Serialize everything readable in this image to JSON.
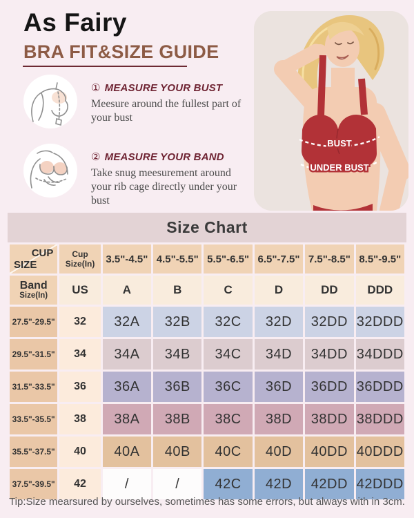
{
  "header": {
    "brand": "As Fairy",
    "subtitle": "BRA FIT&SIZE GUIDE"
  },
  "steps": [
    {
      "number": "①",
      "title": "MEASURE YOUR BUST",
      "description": "Meesure around the fullest part of your bust",
      "icon": "bust-measure-illustration"
    },
    {
      "number": "②",
      "title": "MEASURE YOUR BAND",
      "description": "Take snug meesurement around your rib cage directly under your bust",
      "icon": "band-measure-illustration"
    }
  ],
  "photo": {
    "bust_label": "BUST",
    "under_bust_label": "UNDER BUST"
  },
  "size_chart": {
    "title": "Size Chart",
    "corner": {
      "top": "CUP",
      "bottom": "SIZE"
    },
    "cup_header_label": "Cup Size(In)",
    "cup_ranges": [
      "3.5\"-4.5\"",
      "4.5\"-5.5\"",
      "5.5\"-6.5\"",
      "6.5\"-7.5\"",
      "7.5\"-8.5\"",
      "8.5\"-9.5\""
    ],
    "band_header": {
      "line1": "Band",
      "line2": "Size(In)"
    },
    "us_label": "US",
    "cup_letters": [
      "A",
      "B",
      "C",
      "D",
      "DD",
      "DDD"
    ],
    "empty_cell_color": "#fdfcfc",
    "rows": [
      {
        "band_range": "27.5\"-29.5\"",
        "us": "32",
        "color": "#ccd3e5",
        "sizes": [
          "32A",
          "32B",
          "32C",
          "32D",
          "32DD",
          "32DDD"
        ]
      },
      {
        "band_range": "29.5\"-31.5\"",
        "us": "34",
        "color": "#dccccf",
        "sizes": [
          "34A",
          "34B",
          "34C",
          "34D",
          "34DD",
          "34DDD"
        ]
      },
      {
        "band_range": "31.5\"-33.5\"",
        "us": "36",
        "color": "#b6b2cf",
        "sizes": [
          "36A",
          "36B",
          "36C",
          "36D",
          "36DD",
          "36DDD"
        ]
      },
      {
        "band_range": "33.5\"-35.5\"",
        "us": "38",
        "color": "#d0a9b5",
        "sizes": [
          "38A",
          "38B",
          "38C",
          "38D",
          "38DD",
          "38DDD"
        ]
      },
      {
        "band_range": "35.5\"-37.5\"",
        "us": "40",
        "color": "#e3c19e",
        "sizes": [
          "40A",
          "40B",
          "40C",
          "40D",
          "40DD",
          "40DDD"
        ]
      },
      {
        "band_range": "37.5\"-39.5\"",
        "us": "42",
        "color": "#90aed3",
        "sizes": [
          "/",
          "/",
          "42C",
          "42D",
          "42DD",
          "42DDD"
        ]
      }
    ]
  },
  "footer": {
    "tip": "Tip:Size mearsured by ourselves, sometimes has some errors, but always with in 3cm."
  },
  "colors": {
    "page_bg": "#f8edf2",
    "accent_brown": "#8d5b45",
    "maroon": "#6f2433",
    "chart_band_bg": "#e3d3d5",
    "header_tan": "#f0d3b5",
    "range_tan": "#eac7a7",
    "cream": "#fcebdc",
    "bra_red": "#b23237",
    "photo_bg": "#ebe3df"
  }
}
